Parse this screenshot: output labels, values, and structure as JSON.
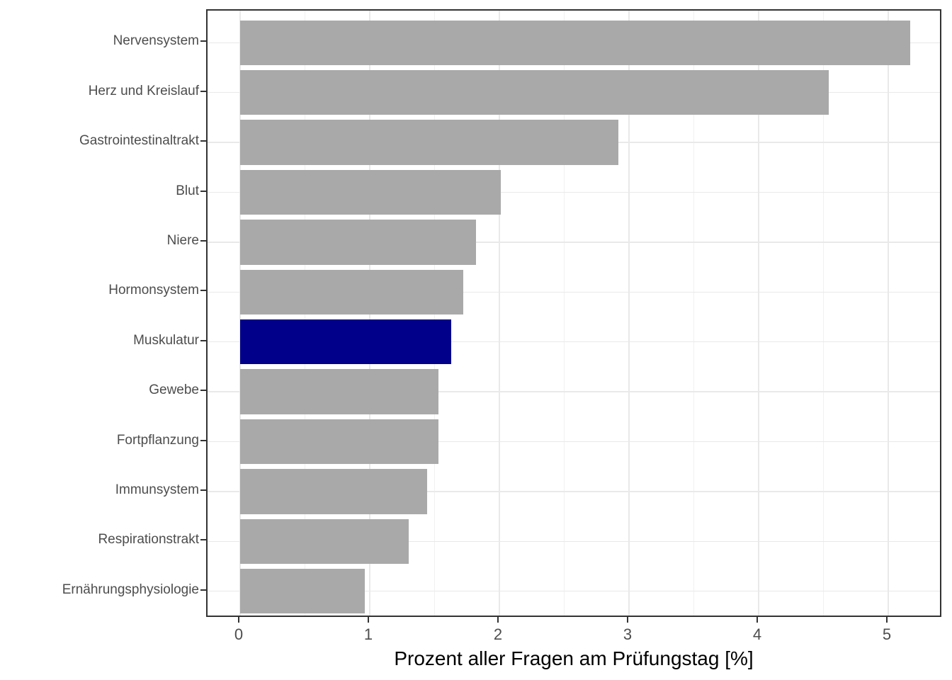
{
  "chart_data": {
    "type": "bar",
    "orientation": "horizontal",
    "title": "",
    "xlabel": "Prozent aller Fragen am Prüfungstag [%]",
    "ylabel": "",
    "categories": [
      "Nervensystem",
      "Herz und Kreislauf",
      "Gastrointestinaltrakt",
      "Blut",
      "Niere",
      "Hormonsystem",
      "Muskulatur",
      "Gewebe",
      "Fortpflanzung",
      "Immunsystem",
      "Respirationstrakt",
      "Ernährungsphysiologie"
    ],
    "values": [
      5.17,
      4.54,
      2.92,
      2.01,
      1.82,
      1.72,
      1.63,
      1.53,
      1.53,
      1.44,
      1.3,
      0.96
    ],
    "highlighted_category": "Muskulatur",
    "x_ticks": [
      0,
      1,
      2,
      3,
      4,
      5
    ],
    "x_tick_labels": [
      "0",
      "1",
      "2",
      "3",
      "4",
      "5"
    ],
    "x_minor_ticks": [
      0.5,
      1.5,
      2.5,
      3.5,
      4.5
    ],
    "xlim": [
      -0.25,
      5.43
    ],
    "grid": true,
    "legend_position": "none"
  },
  "colors": {
    "bar_default": "#A9A9A9",
    "bar_highlight": "#00008B",
    "panel_border": "#333333",
    "grid_major": "#E9E9E9",
    "grid_minor": "#F1F1F1",
    "tick_mark": "#333333",
    "axis_text": "#4D4D4D",
    "axis_title": "#000000",
    "background": "#FFFFFF"
  }
}
